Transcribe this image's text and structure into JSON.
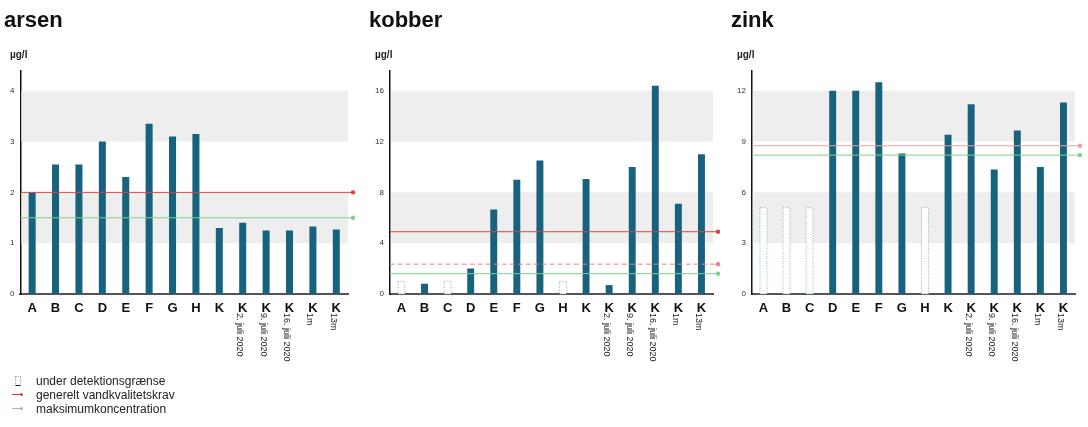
{
  "chart_data": [
    {
      "type": "bar",
      "title": "arsen",
      "ylabel": "µg/l",
      "categories": [
        "A",
        "B",
        "C",
        "D",
        "E",
        "F",
        "G",
        "H",
        "K",
        "K 2. juli 2020",
        "K 9. juli 2020",
        "K 16. juli 2020",
        "K 1m",
        "K 13m"
      ],
      "series": [
        {
          "color": "#17627c",
          "values": [
            2.0,
            2.55,
            2.55,
            3.0,
            2.3,
            3.35,
            3.1,
            3.15,
            1.3,
            1.4,
            1.25,
            1.25,
            1.33,
            1.27
          ]
        }
      ],
      "ylim": [
        0,
        4.4
      ],
      "yticks": [
        0,
        1,
        2,
        3,
        4
      ],
      "grid": false,
      "legend": "bottom left",
      "bands": [
        {
          "axis": "y",
          "from": 1,
          "to": 2,
          "color": "#eeeeee"
        },
        {
          "axis": "y",
          "from": 3,
          "to": 4,
          "color": "#eeeeee"
        }
      ],
      "ref_lines": [
        {
          "axis": "y",
          "value": 2.0,
          "label": "generelt vandkvalitetskrav",
          "color": "#e04040"
        },
        {
          "axis": "y",
          "value": 1.5,
          "label": "maksimumkoncentration",
          "color": "#7fcf8f"
        }
      ]
    },
    {
      "type": "bar",
      "title": "kobber",
      "ylabel": "µg/l",
      "categories": [
        "A",
        "B",
        "C",
        "D",
        "E",
        "F",
        "G",
        "H",
        "K",
        "K 2. juli 2020",
        "K 9. juli 2020",
        "K 16. juli 2020",
        "K 1m",
        "K 13m"
      ],
      "series": [
        {
          "color": "#17627c",
          "values": [
            null,
            0.8,
            null,
            2.0,
            6.65,
            9.0,
            10.5,
            null,
            9.05,
            0.7,
            10.0,
            16.4,
            7.1,
            11.0
          ]
        },
        {
          "name": "under detektionsgrænse",
          "color": "#8fb3c0",
          "line_style": "dotted",
          "values": [
            1.0,
            null,
            1.0,
            null,
            null,
            null,
            null,
            1.0,
            null,
            null,
            null,
            null,
            null,
            null
          ]
        }
      ],
      "ylim": [
        0,
        17.6
      ],
      "yticks": [
        0,
        4,
        8,
        12,
        16
      ],
      "grid": false,
      "bands": [
        {
          "axis": "y",
          "from": 4,
          "to": 8,
          "color": "#eeeeee"
        },
        {
          "axis": "y",
          "from": 12,
          "to": 16,
          "color": "#eeeeee"
        }
      ],
      "ref_lines": [
        {
          "axis": "y",
          "value": 4.9,
          "color": "#e04040"
        },
        {
          "axis": "y",
          "value": 2.35,
          "color": "#f08080",
          "line_style": "dashed"
        },
        {
          "axis": "y",
          "value": 1.6,
          "color": "#7fcf8f"
        }
      ]
    },
    {
      "type": "bar",
      "title": "zink",
      "ylabel": "µg/l",
      "categories": [
        "A",
        "B",
        "C",
        "D",
        "E",
        "F",
        "G",
        "H",
        "K",
        "K 2. juli 2020",
        "K 9. juli 2020",
        "K 16. juli 2020",
        "K 1m",
        "K 13m"
      ],
      "series": [
        {
          "color": "#17627c",
          "values": [
            null,
            null,
            null,
            12.0,
            12.0,
            12.5,
            8.3,
            null,
            9.4,
            11.2,
            7.35,
            9.65,
            7.5,
            11.3
          ]
        },
        {
          "color": "#8fb3c0",
          "line_style": "dotted",
          "values": [
            5.1,
            5.1,
            5.1,
            null,
            null,
            null,
            null,
            5.1,
            null,
            null,
            null,
            null,
            null,
            null
          ]
        }
      ],
      "ylim": [
        0,
        13.2
      ],
      "yticks": [
        0,
        3,
        6,
        9,
        12
      ],
      "grid": false,
      "bands": [
        {
          "axis": "y",
          "from": 3,
          "to": 6,
          "color": "#eeeeee"
        },
        {
          "axis": "y",
          "from": 9,
          "to": 12,
          "color": "#eeeeee"
        }
      ],
      "ref_lines": [
        {
          "axis": "y",
          "value": 8.75,
          "color": "#e8a0a0"
        },
        {
          "axis": "y",
          "value": 8.2,
          "color": "#7fcf8f"
        }
      ]
    }
  ]
}
